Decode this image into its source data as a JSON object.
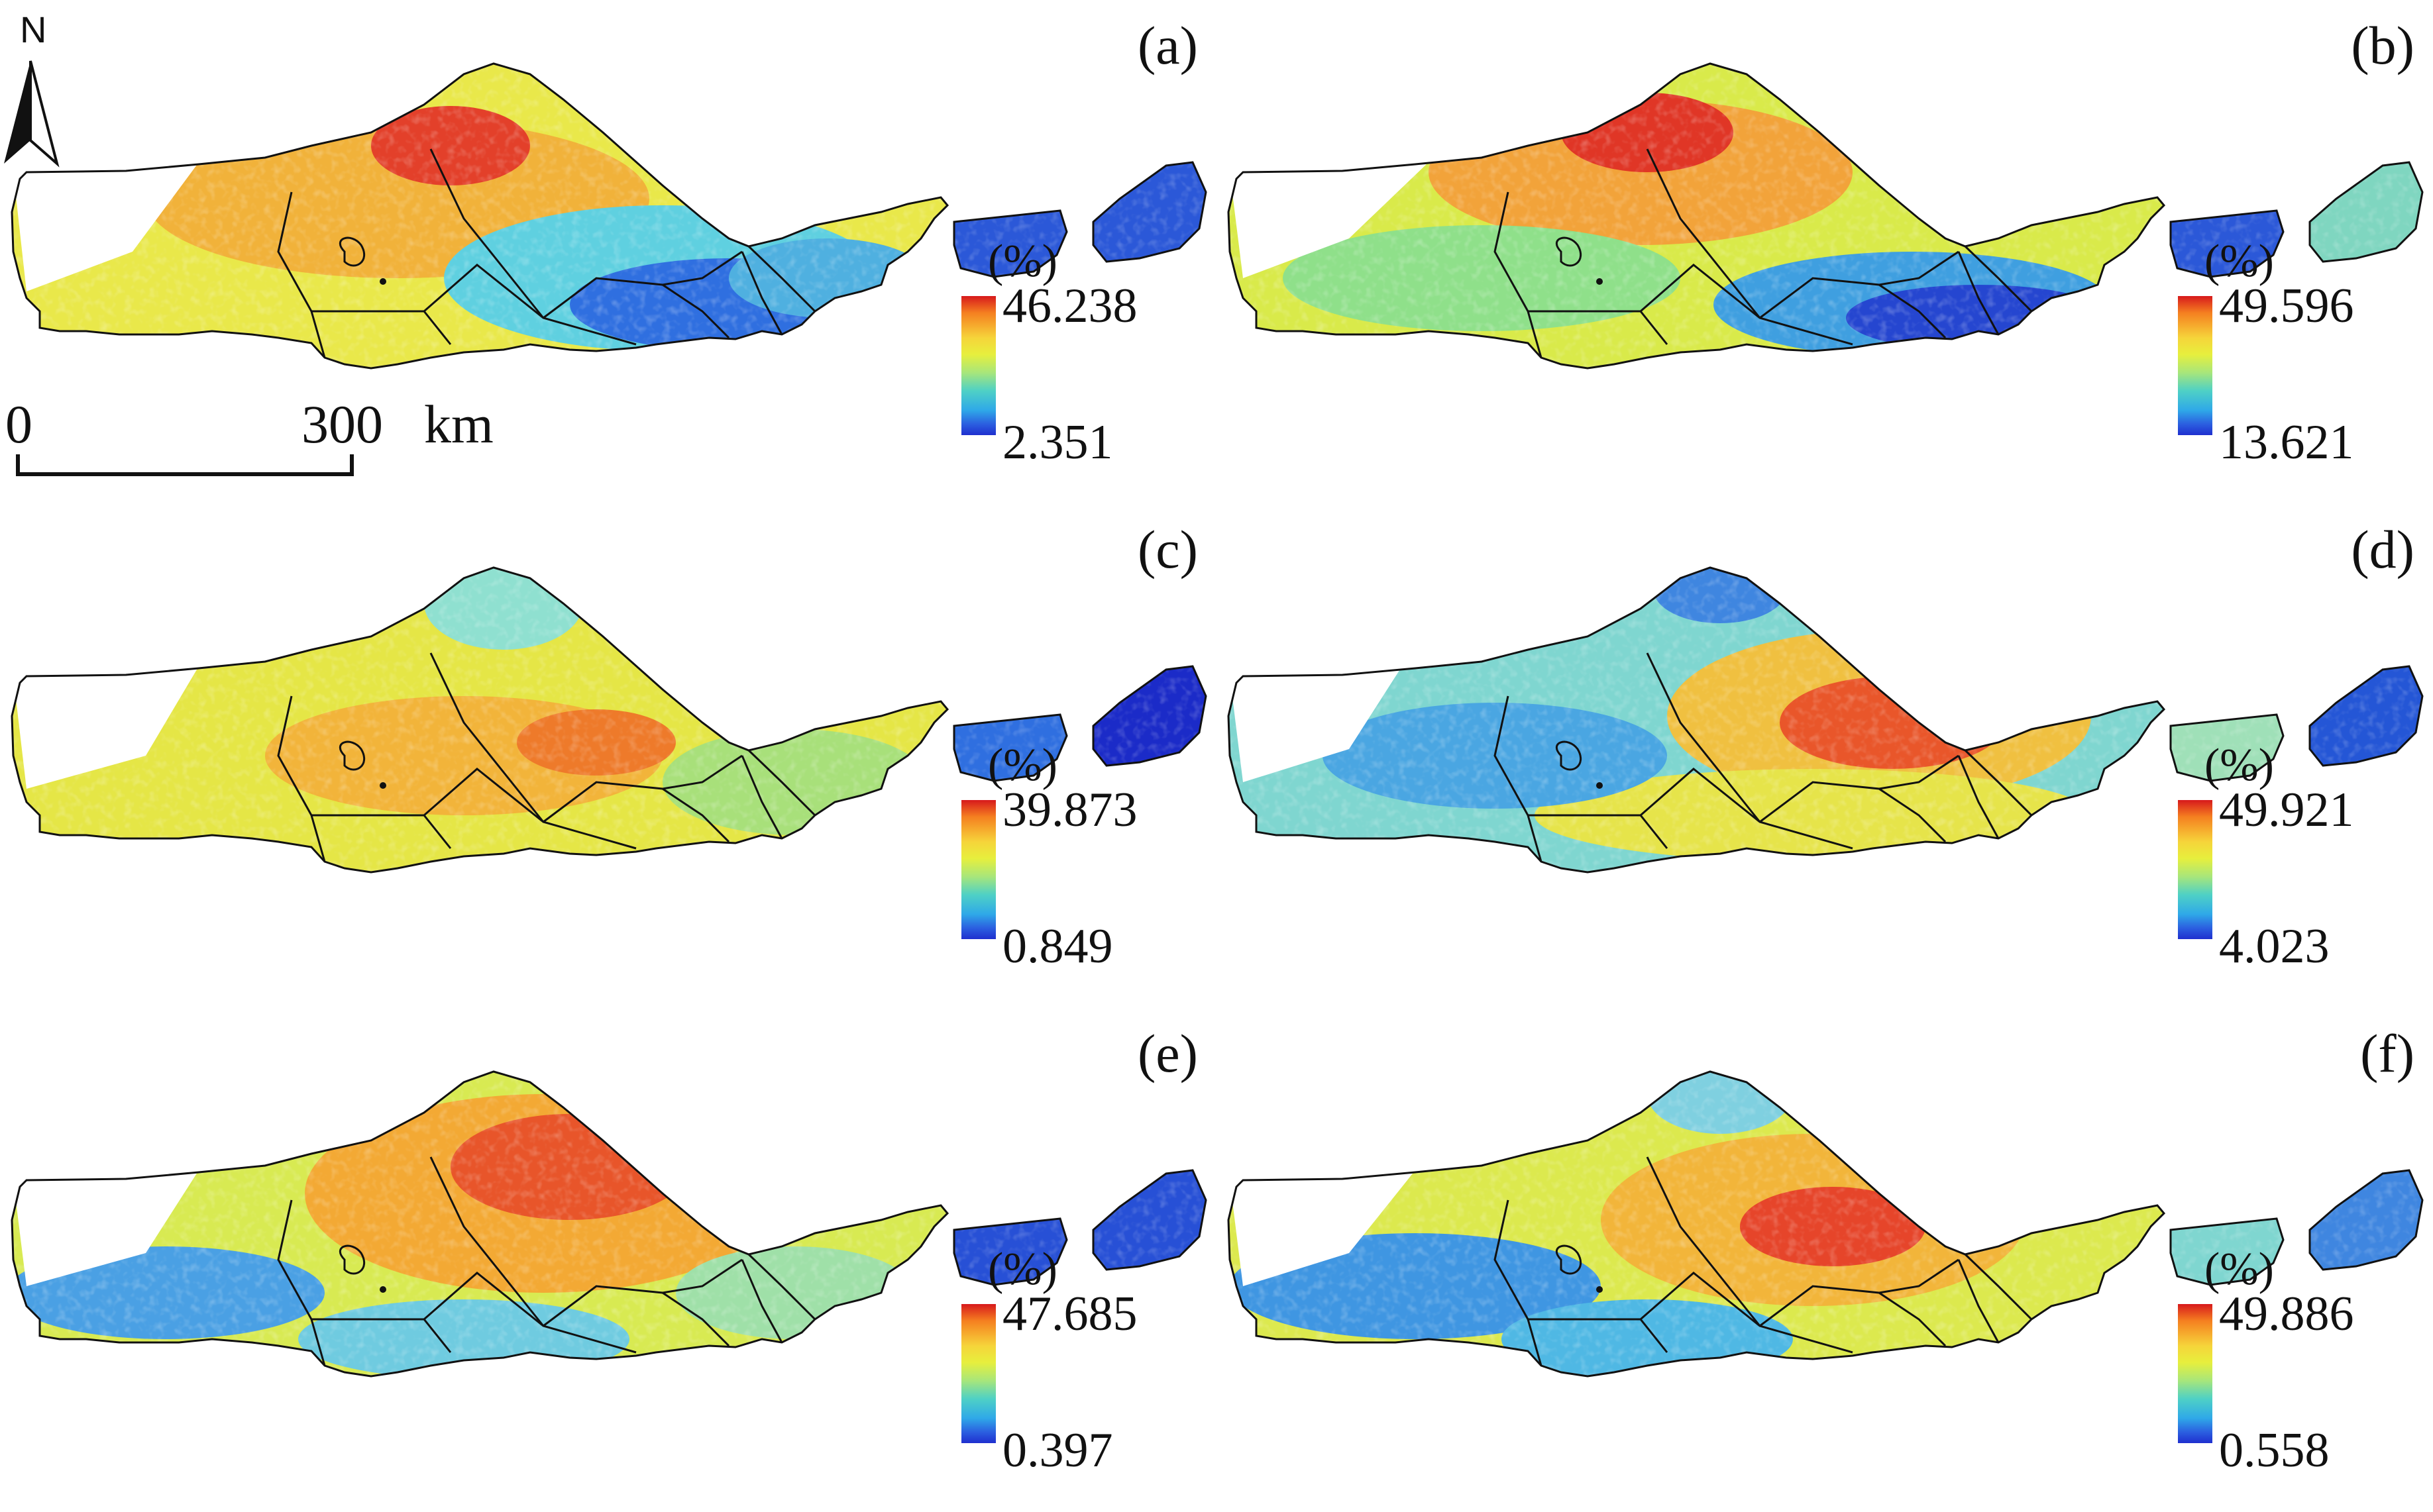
{
  "figure": {
    "unit_label": "(%)",
    "north_label": "N",
    "scale": {
      "zero": "0",
      "distance": "300",
      "unit": "km"
    },
    "colormap": "jet (blue-low to red-high)",
    "panels": [
      {
        "label": "(a)",
        "max": "46.238",
        "min": "2.351"
      },
      {
        "label": "(b)",
        "max": "49.596",
        "min": "13.621"
      },
      {
        "label": "(c)",
        "max": "39.873",
        "min": "0.849"
      },
      {
        "label": "(d)",
        "max": "49.921",
        "min": "4.023"
      },
      {
        "label": "(e)",
        "max": "47.685",
        "min": "0.397"
      },
      {
        "label": "(f)",
        "max": "49.886",
        "min": "0.558"
      }
    ]
  }
}
